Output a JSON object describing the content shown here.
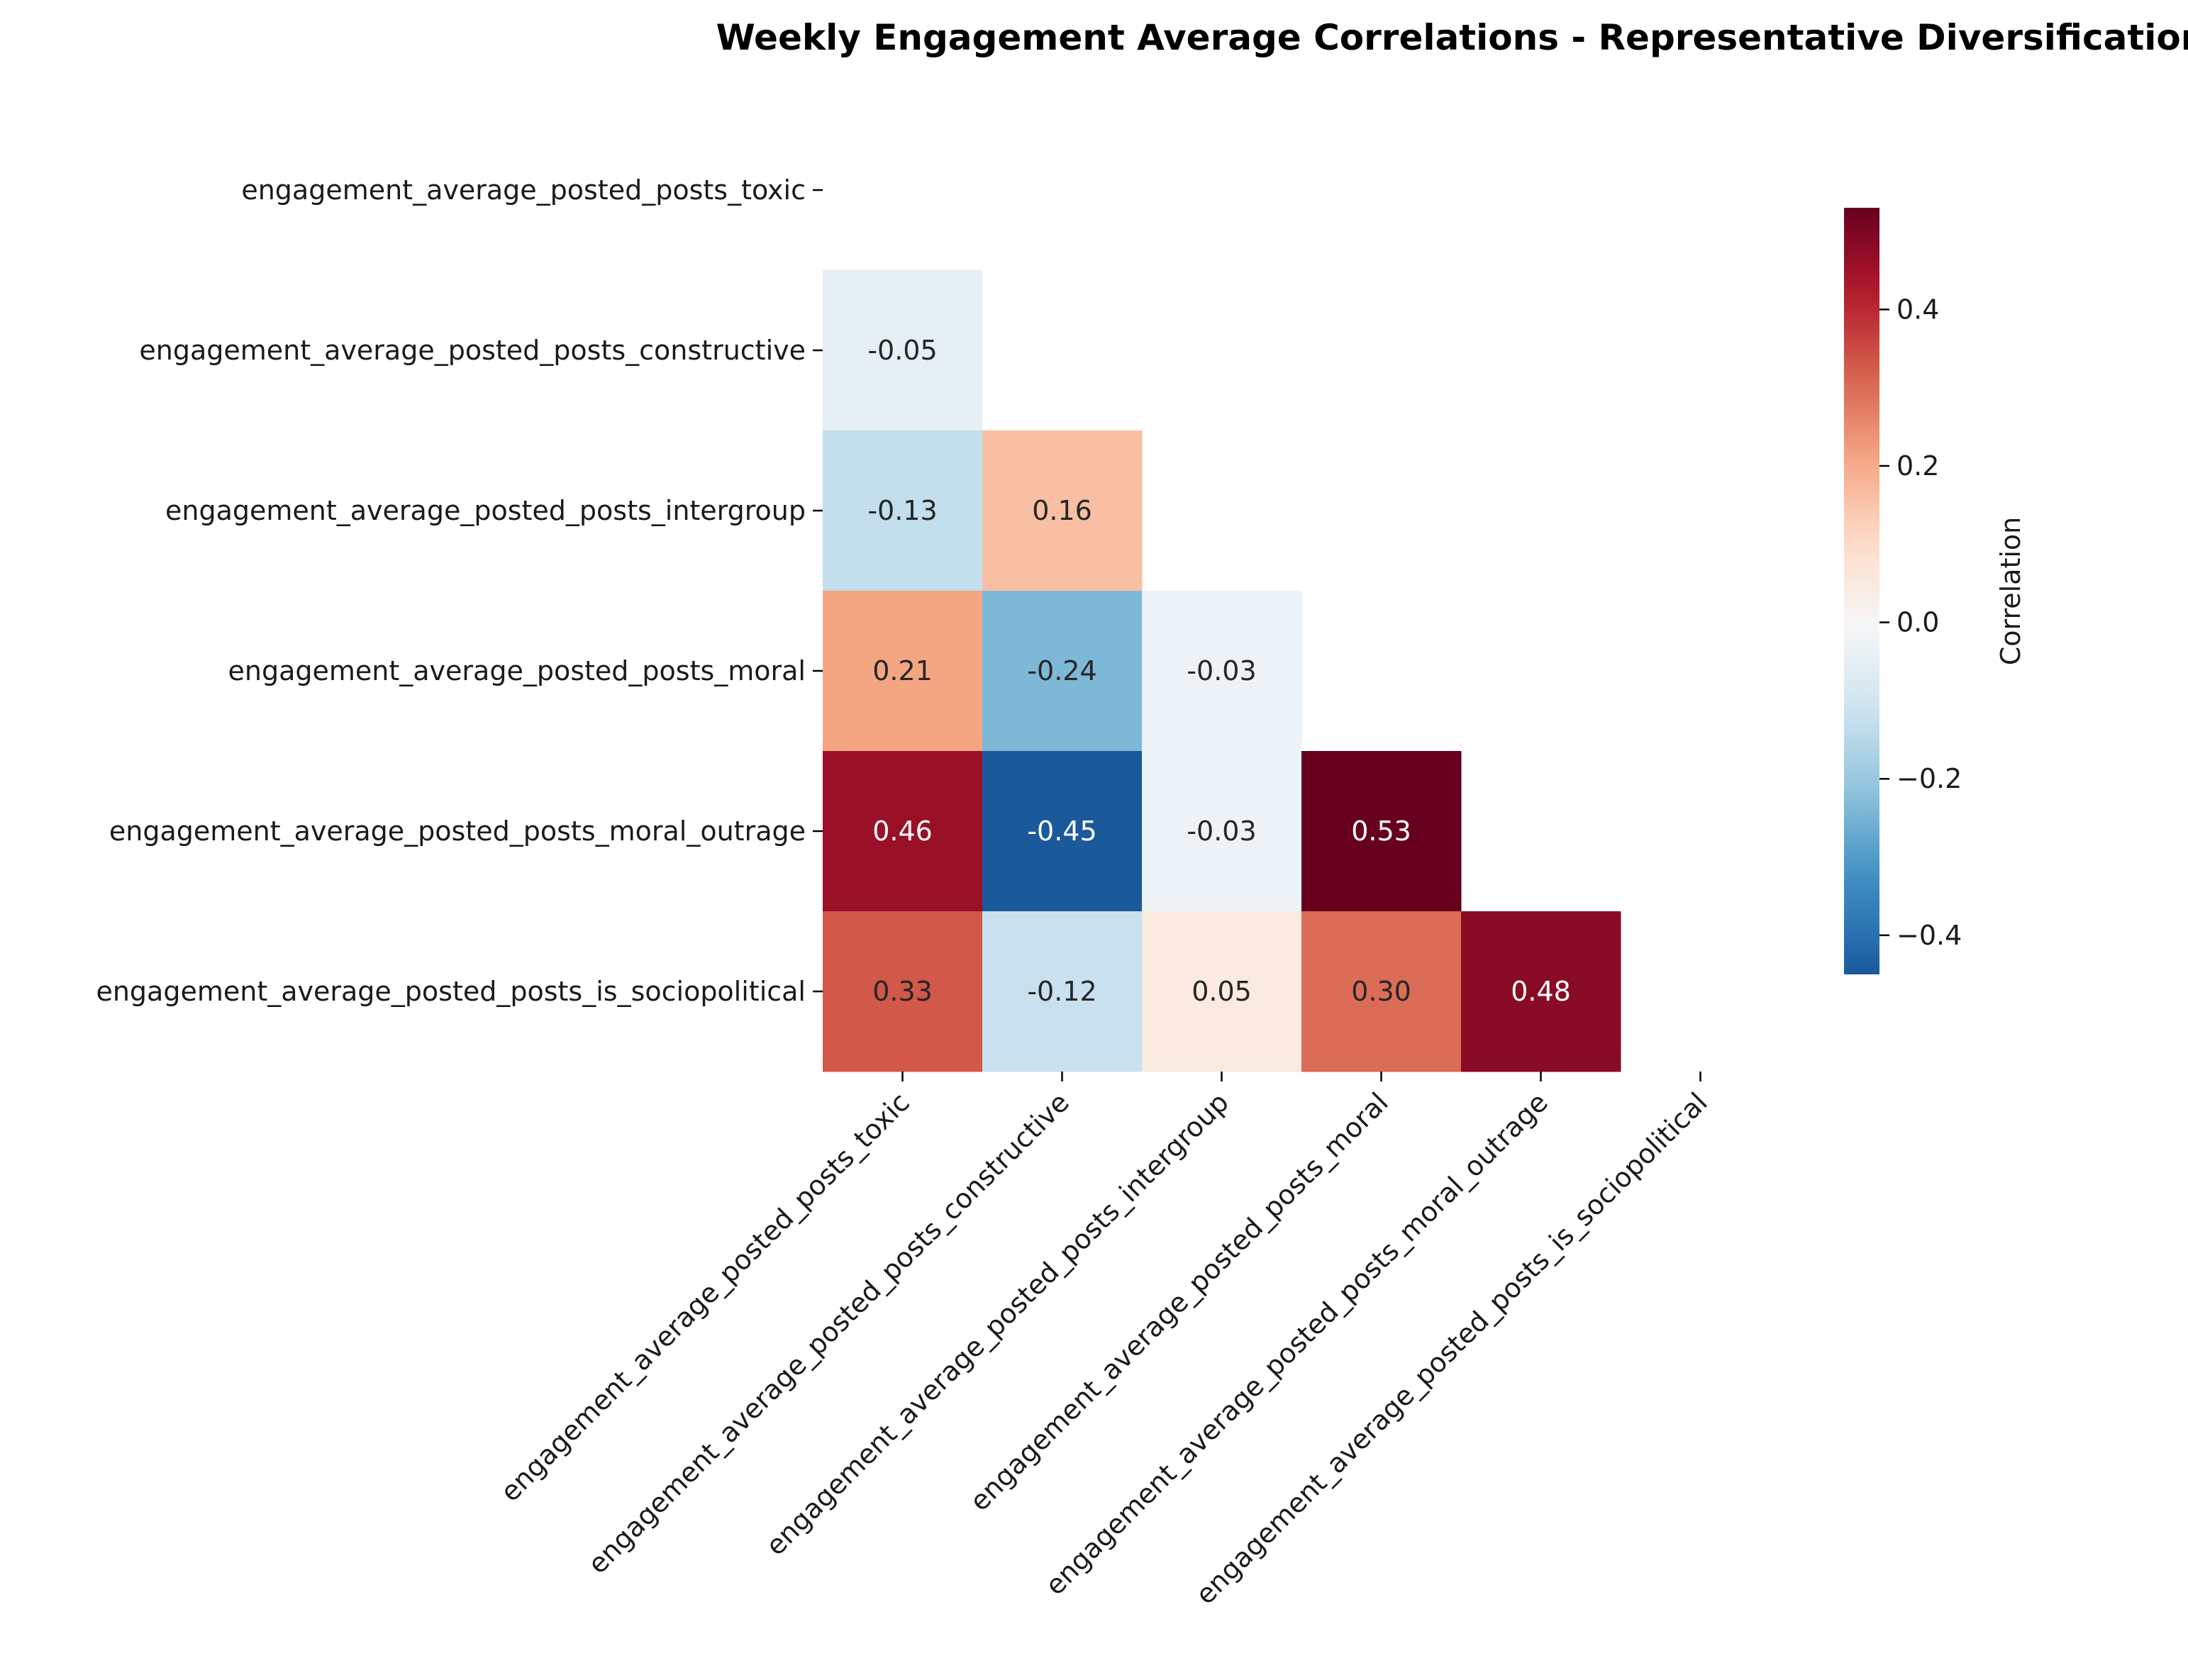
{
  "chart_data": {
    "type": "heatmap",
    "title": "Weekly Engagement Average Correlations - Representative Diversification",
    "rows": [
      "engagement_average_posted_posts_toxic",
      "engagement_average_posted_posts_constructive",
      "engagement_average_posted_posts_intergroup",
      "engagement_average_posted_posts_moral",
      "engagement_average_posted_posts_moral_outrage",
      "engagement_average_posted_posts_is_sociopolitical"
    ],
    "columns": [
      "engagement_average_posted_posts_toxic",
      "engagement_average_posted_posts_constructive",
      "engagement_average_posted_posts_intergroup",
      "engagement_average_posted_posts_moral",
      "engagement_average_posted_posts_moral_outrage",
      "engagement_average_posted_posts_is_sociopolitical"
    ],
    "mask": "upper-triangle-including-diagonal",
    "cells": [
      {
        "row": 1,
        "col": 0,
        "value": -0.05,
        "label": "-0.05"
      },
      {
        "row": 2,
        "col": 0,
        "value": -0.13,
        "label": "-0.13"
      },
      {
        "row": 2,
        "col": 1,
        "value": 0.16,
        "label": "0.16"
      },
      {
        "row": 3,
        "col": 0,
        "value": 0.21,
        "label": "0.21"
      },
      {
        "row": 3,
        "col": 1,
        "value": -0.24,
        "label": "-0.24"
      },
      {
        "row": 3,
        "col": 2,
        "value": -0.03,
        "label": "-0.03"
      },
      {
        "row": 4,
        "col": 0,
        "value": 0.46,
        "label": "0.46"
      },
      {
        "row": 4,
        "col": 1,
        "value": -0.45,
        "label": "-0.45"
      },
      {
        "row": 4,
        "col": 2,
        "value": -0.03,
        "label": "-0.03"
      },
      {
        "row": 4,
        "col": 3,
        "value": 0.53,
        "label": "0.53"
      },
      {
        "row": 5,
        "col": 0,
        "value": 0.33,
        "label": "0.33"
      },
      {
        "row": 5,
        "col": 1,
        "value": -0.12,
        "label": "-0.12"
      },
      {
        "row": 5,
        "col": 2,
        "value": 0.05,
        "label": "0.05"
      },
      {
        "row": 5,
        "col": 3,
        "value": 0.3,
        "label": "0.30"
      },
      {
        "row": 5,
        "col": 4,
        "value": 0.48,
        "label": "0.48"
      }
    ],
    "colorbar": {
      "label": "Correlation",
      "colormap": "RdBu_r",
      "vmin": -0.45,
      "vmax": 0.53,
      "center": 0,
      "ticks": [
        -0.4,
        -0.2,
        0.0,
        0.2,
        0.4
      ],
      "tick_labels": [
        "−0.4",
        "−0.2",
        "0.0",
        "0.2",
        "0.4"
      ]
    }
  }
}
